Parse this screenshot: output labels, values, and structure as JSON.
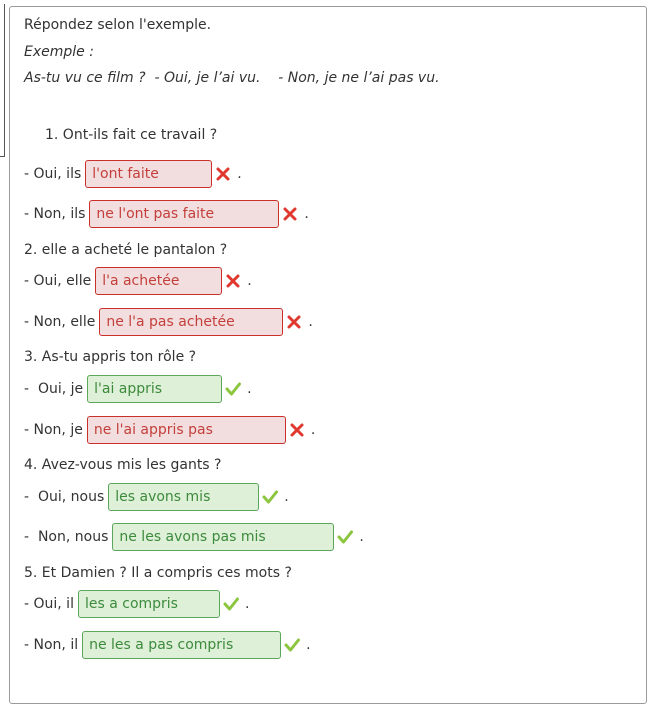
{
  "instruction": "Répondez selon l'exemple.",
  "example": {
    "title": "Exemple :",
    "text": "As-tu vu ce film ?  - Oui, je l’ai vu.    - Non, je ne l’ai pas vu."
  },
  "questions": [
    {
      "prompt": "1. Ont-ils fait ce travail ?",
      "answers": [
        {
          "prefix": "- Oui, ils",
          "value": "l'ont faite",
          "status": "incorrect",
          "suffix": "."
        },
        {
          "prefix": "- Non, ils",
          "value": "ne l'ont pas faite",
          "status": "incorrect",
          "suffix": "."
        }
      ]
    },
    {
      "prompt": "2. elle a acheté le pantalon ?",
      "answers": [
        {
          "prefix": "- Oui, elle",
          "value": "l'a achetée",
          "status": "incorrect",
          "suffix": "."
        },
        {
          "prefix": "- Non, elle",
          "value": "ne l'a pas achetée",
          "status": "incorrect",
          "suffix": "."
        }
      ]
    },
    {
      "prompt": "3. As-tu appris ton rôle ?",
      "answers": [
        {
          "prefix": "-  Oui, je",
          "value": "l'ai appris",
          "status": "correct",
          "suffix": "."
        },
        {
          "prefix": "- Non, je",
          "value": "ne l'ai appris pas",
          "status": "incorrect",
          "suffix": "."
        }
      ]
    },
    {
      "prompt": "4. Avez-vous mis les gants ?",
      "answers": [
        {
          "prefix": "-  Oui, nous",
          "value": "les avons mis",
          "status": "correct",
          "suffix": "."
        },
        {
          "prefix": "-  Non, nous",
          "value": "ne les avons pas mis",
          "status": "correct",
          "suffix": "."
        }
      ]
    },
    {
      "prompt": "5. Et Damien ? Il a compris ces mots ?",
      "answers": [
        {
          "prefix": "- Oui, il",
          "value": "les a compris",
          "status": "correct",
          "suffix": "."
        },
        {
          "prefix": "- Non, il",
          "value": "ne les a pas compris",
          "status": "correct",
          "suffix": "."
        }
      ]
    }
  ],
  "colors": {
    "incorrect_bg": "#f2dede",
    "incorrect_border": "#c9302c",
    "correct_bg": "#dff0d8",
    "correct_border": "#5ca65c"
  },
  "icons": {
    "incorrect": "cross-icon",
    "correct": "check-icon"
  }
}
